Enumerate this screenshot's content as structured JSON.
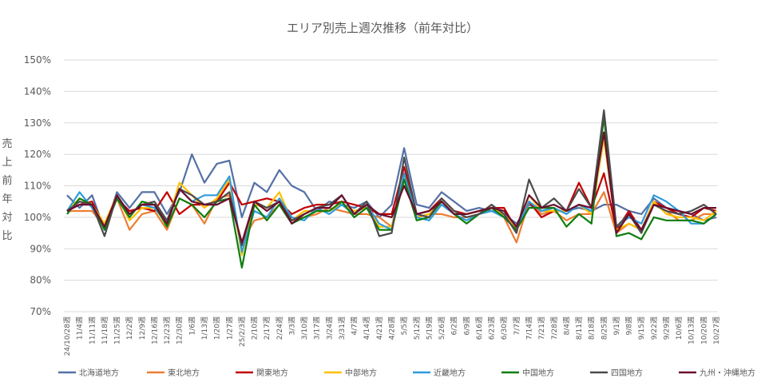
{
  "chart_data": {
    "type": "line",
    "title": "エリア別売上週次推移（前年対比）",
    "ylabel": "売上前年対比",
    "ylim": [
      70,
      150
    ],
    "yticks": [
      "70%",
      "80%",
      "90%",
      "100%",
      "110%",
      "120%",
      "130%",
      "140%",
      "150%"
    ],
    "grid": true,
    "legend_position": "bottom",
    "categories": [
      "24/10/28週",
      "11/4週",
      "11/11週",
      "11/18週",
      "11/25週",
      "12/2週",
      "12/9週",
      "12/16週",
      "12/23週",
      "12/30週",
      "1/6週",
      "1/13週",
      "1/20週",
      "1/27週",
      "25/2/3週",
      "2/10週",
      "2/17週",
      "2/24週",
      "3/3週",
      "3/10週",
      "3/17週",
      "3/24週",
      "3/31週",
      "4/7週",
      "4/14週",
      "4/21週",
      "4/28週",
      "5/5週",
      "5/12週",
      "5/19週",
      "5/26週",
      "6/2週",
      "6/9週",
      "6/16週",
      "6/23週",
      "6/30週",
      "7/7週",
      "7/14週",
      "7/21週",
      "7/28週",
      "8/4週",
      "8/11週",
      "8/18週",
      "8/25週",
      "9/1週",
      "9/8週",
      "9/15週",
      "9/22週",
      "9/29週",
      "10/6週",
      "10/13週",
      "10/20週",
      "10/27週"
    ],
    "series": [
      {
        "name": "北海道地方",
        "color": "#5470a6",
        "values": [
          107,
          103,
          107,
          96,
          108,
          103,
          108,
          108,
          101,
          108,
          120,
          111,
          117,
          118,
          100,
          111,
          108,
          115,
          110,
          108,
          102,
          105,
          104,
          103,
          105,
          100,
          104,
          122,
          104,
          103,
          108,
          105,
          102,
          103,
          102,
          101,
          98,
          104,
          102,
          102,
          102,
          103,
          102,
          104,
          104,
          102,
          101,
          106,
          103,
          102,
          101,
          99,
          100
        ]
      },
      {
        "name": "東北地方",
        "color": "#ed7d31",
        "values": [
          102,
          102,
          102,
          97,
          106,
          96,
          101,
          102,
          96,
          106,
          104,
          98,
          106,
          107,
          92,
          99,
          100,
          104,
          99,
          100,
          101,
          103,
          102,
          101,
          101,
          100,
          97,
          113,
          100,
          101,
          101,
          100,
          100,
          101,
          104,
          100,
          92,
          105,
          101,
          102,
          99,
          101,
          101,
          108,
          95,
          98,
          96,
          104,
          102,
          99,
          99,
          101,
          101
        ]
      },
      {
        "name": "関東地方",
        "color": "#c00000",
        "values": [
          102,
          104,
          105,
          97,
          106,
          102,
          103,
          102,
          108,
          101,
          104,
          104,
          105,
          111,
          104,
          105,
          106,
          105,
          101,
          103,
          104,
          104,
          105,
          104,
          103,
          101,
          101,
          116,
          101,
          102,
          106,
          102,
          101,
          102,
          103,
          103,
          96,
          105,
          100,
          102,
          102,
          111,
          103,
          114,
          96,
          102,
          96,
          105,
          103,
          101,
          100,
          103,
          102
        ]
      },
      {
        "name": "中部地方",
        "color": "#ffc000",
        "values": [
          102,
          106,
          104,
          98,
          107,
          99,
          103,
          103,
          98,
          111,
          107,
          103,
          106,
          112,
          88,
          104,
          103,
          108,
          99,
          102,
          102,
          102,
          104,
          102,
          103,
          97,
          97,
          113,
          100,
          101,
          105,
          101,
          101,
          102,
          103,
          101,
          96,
          107,
          102,
          102,
          102,
          104,
          101,
          125,
          96,
          98,
          96,
          105,
          101,
          100,
          100,
          99,
          102
        ]
      },
      {
        "name": "近畿地方",
        "color": "#2e9bdb",
        "values": [
          102,
          108,
          103,
          97,
          106,
          101,
          104,
          103,
          98,
          109,
          105,
          107,
          107,
          113,
          89,
          102,
          100,
          106,
          100,
          99,
          103,
          101,
          104,
          101,
          104,
          98,
          96,
          114,
          100,
          99,
          104,
          101,
          99,
          101,
          102,
          100,
          96,
          105,
          102,
          103,
          101,
          104,
          102,
          127,
          97,
          100,
          98,
          107,
          105,
          102,
          98,
          98,
          101
        ]
      },
      {
        "name": "中国地方",
        "color": "#0e7d0e",
        "values": [
          101,
          106,
          104,
          96,
          106,
          100,
          105,
          104,
          97,
          106,
          104,
          100,
          105,
          106,
          84,
          104,
          99,
          104,
          98,
          100,
          102,
          102,
          105,
          100,
          103,
          96,
          96,
          112,
          99,
          100,
          105,
          101,
          98,
          101,
          103,
          100,
          96,
          103,
          103,
          103,
          97,
          101,
          98,
          132,
          94,
          95,
          93,
          100,
          99,
          99,
          99,
          98,
          101
        ]
      },
      {
        "name": "四国地方",
        "color": "#4b4b4b",
        "values": [
          102,
          105,
          104,
          94,
          107,
          101,
          104,
          105,
          99,
          109,
          107,
          104,
          105,
          108,
          91,
          105,
          103,
          105,
          99,
          101,
          103,
          104,
          107,
          101,
          105,
          94,
          95,
          119,
          101,
          100,
          106,
          102,
          100,
          101,
          104,
          101,
          95,
          112,
          103,
          106,
          102,
          109,
          103,
          134,
          97,
          101,
          95,
          104,
          102,
          101,
          102,
          104,
          101
        ]
      },
      {
        "name": "九州・沖縄地方",
        "color": "#6b0f2e",
        "values": [
          102,
          104,
          104,
          97,
          107,
          101,
          104,
          104,
          98,
          109,
          105,
          104,
          104,
          106,
          92,
          105,
          102,
          105,
          98,
          101,
          103,
          103,
          107,
          101,
          104,
          101,
          100,
          110,
          101,
          102,
          105,
          101,
          101,
          102,
          103,
          102,
          97,
          107,
          103,
          104,
          102,
          104,
          103,
          127,
          95,
          101,
          96,
          104,
          103,
          102,
          101,
          103,
          103
        ]
      }
    ]
  }
}
